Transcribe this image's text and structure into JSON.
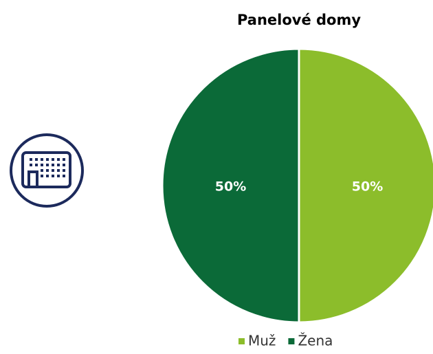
{
  "chart_data": {
    "type": "pie",
    "title": "Panelové domy",
    "categories": [
      "Muž",
      "Žena"
    ],
    "values": [
      50,
      50
    ],
    "value_labels": [
      "50%",
      "50%"
    ],
    "colors": [
      "#8cbd2b",
      "#0b6a38"
    ],
    "legend": "bottom"
  }
}
